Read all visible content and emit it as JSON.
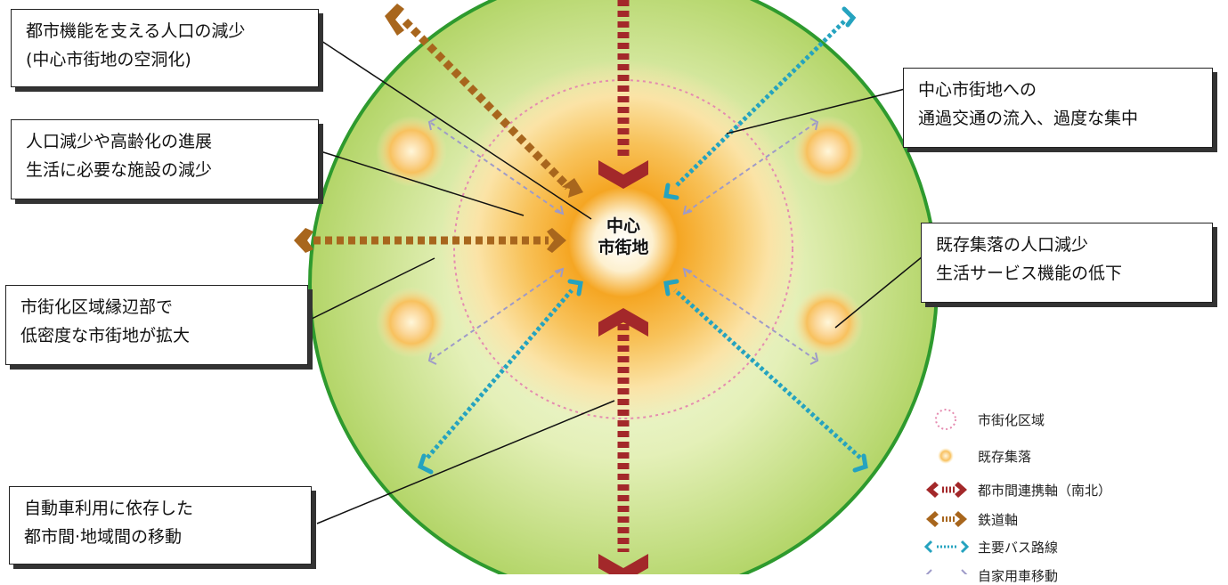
{
  "center_label": [
    "中心",
    "市街地"
  ],
  "callouts": {
    "population_decline_center": [
      "都市機能を支える人口の減少",
      "(中心市街地の空洞化)"
    ],
    "aging_facilities": [
      "人口減少や高齢化の進展",
      "生活に必要な施設の減少"
    ],
    "sprawl_edge": [
      "市街化区域縁辺部で",
      "低密度な市街地が拡大"
    ],
    "car_dependence": [
      "自動車利用に依存した",
      "都市間·地域間の移動"
    ],
    "through_traffic": [
      "中心市街地への",
      "通過交通の流入、過度な集中"
    ],
    "village_decline": [
      "既存集落の人口減少",
      "生活サービス機能の低下"
    ]
  },
  "legend": [
    {
      "label": "市街化区域",
      "symbol": "dotted-pink-circle"
    },
    {
      "label": "既存集落",
      "symbol": "orange-dot"
    },
    {
      "label": "都市間連携軸（南北）",
      "symbol": "red-dashed-arrow"
    },
    {
      "label": "鉄道軸",
      "symbol": "brown-dashed-arrow"
    },
    {
      "label": "主要バス路線",
      "symbol": "blue-dotted-arrow"
    },
    {
      "label": "自家用車移動",
      "symbol": "purple-dashed-arrow"
    }
  ],
  "colors": {
    "outer_circle_edge": "#2e9a2e",
    "outer_fill_light": "#f4f9e0",
    "outer_fill_dark": "#b7d86c",
    "core": "#f39a1a",
    "urban_zone_ring": "#e58bb0",
    "north_south_axis": "#a3282a",
    "railway_axis": "#a8661d",
    "bus_route": "#25a3bf",
    "car_travel": "#9e9ac8"
  }
}
